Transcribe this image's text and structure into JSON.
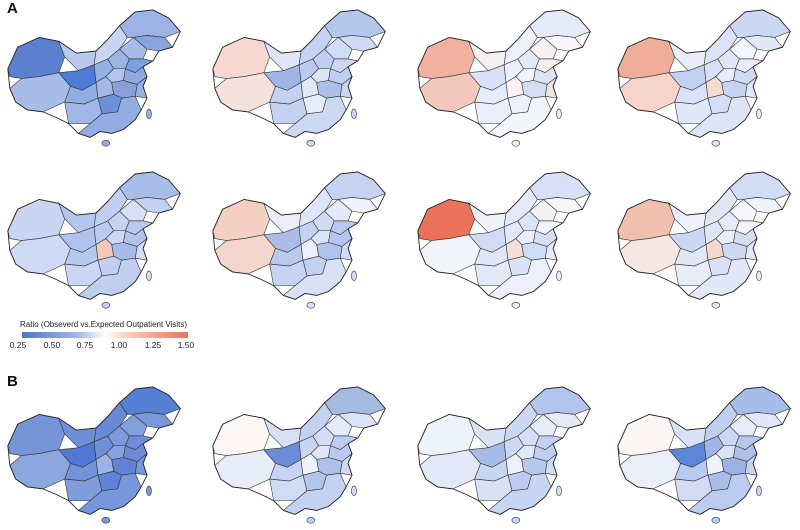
{
  "panels": [
    {
      "label": "A",
      "map_colors": [
        [
          "#5a80cf",
          "#a8bce8",
          "#b8c8ee",
          "#c8d6f3",
          "#9db2e6",
          "#8aa4e0",
          "#4e7bd6",
          "#a6bde9",
          "#95b0e4",
          "#9ab4e6",
          "#7fa0de",
          "#b3c5ee",
          "#8ea9e2",
          "#92ade3",
          "#a2b8e7",
          "#889fd9",
          "#98b1e5",
          "#6d90da",
          "#a0b7e7",
          "#93ace3"
        ],
        [
          "#f6d8d1",
          "#f4e1dc",
          "#dfe5f6",
          "#c5d2f1",
          "#b6c7ee",
          "#cfdaf4",
          "#9fb5e6",
          "#d0dbf4",
          "#b9c9ef",
          "#c1d0f2",
          "#cbd7f3",
          "#dde4f6",
          "#bfcef1",
          "#c4d2f2",
          "#e0e7f7",
          "#aabfe9",
          "#c9d5f3",
          "#e8edf9",
          "#c3d1f2",
          "#ccd8f4"
        ],
        [
          "#f0b1a0",
          "#f2c8bc",
          "#f5eeee",
          "#eef2fb",
          "#e5ebf8",
          "#f5f7fc",
          "#d8e1f6",
          "#f6f2f2",
          "#eaf0fa",
          "#e2e9f8",
          "#f8f0ee",
          "#f1f4fb",
          "#dce4f7",
          "#e6ecf9",
          "#fbf4f2",
          "#d3ddf4",
          "#efe6e4",
          "#ecf1fa",
          "#e9eef9",
          "#f3f5fc"
        ],
        [
          "#f0ad99",
          "#f5d4ca",
          "#e8edf9",
          "#dbe3f6",
          "#cbd7f3",
          "#e1e8f7",
          "#c2d0f1",
          "#f3f6fc",
          "#d7e0f6",
          "#dfe6f7",
          "#ebeffa",
          "#e6ecf8",
          "#cfdaf4",
          "#d9e2f6",
          "#f6dccf",
          "#c6d3f2",
          "#e1e8f8",
          "#d4def5",
          "#e0e7f7",
          "#dce4f7"
        ]
      ]
    },
    {
      "label": "",
      "map_colors": [
        [
          "#c9d6f3",
          "#cfdaf4",
          "#b5c6ee",
          "#c0cff1",
          "#a9bde9",
          "#c4d2f2",
          "#b0c2ec",
          "#d6dff5",
          "#bccbf0",
          "#c6d3f2",
          "#bac9ef",
          "#cdd8f3",
          "#b2c4ed",
          "#b7c8ee",
          "#f1c8b9",
          "#a7bbe8",
          "#d2dcf5",
          "#c1d0f1",
          "#cad6f3",
          "#bfcef1"
        ],
        [
          "#f4d0c4",
          "#f2d6cc",
          "#e9eef9",
          "#dfe6f7",
          "#c7d3f2",
          "#f0f3fb",
          "#aabde9",
          "#e3e9f8",
          "#c3d1f2",
          "#cfdaf4",
          "#bacaef",
          "#dbe3f6",
          "#b5c6ee",
          "#b9c9ef",
          "#ecf0fa",
          "#b1c3ec",
          "#d0dbf4",
          "#c2d0f1",
          "#c8d4f3",
          "#d8e1f6"
        ],
        [
          "#eb7258",
          "#f2f4fb",
          "#eef2fb",
          "#e4eaf8",
          "#d7e0f6",
          "#f4f6fc",
          "#d1dbf4",
          "#f7f1f0",
          "#e1e8f8",
          "#dce4f7",
          "#eff3fb",
          "#e8edf9",
          "#d5dff5",
          "#dee5f7",
          "#f3ddd5",
          "#d0dbf4",
          "#e6ecf9",
          "#dae2f6",
          "#e2e9f8",
          "#ebf0fa"
        ],
        [
          "#f1bfae",
          "#f6e7e2",
          "#ecf0fa",
          "#e0e7f7",
          "#d2dcf5",
          "#eef2fb",
          "#cbd7f3",
          "#f6f7fc",
          "#dde5f7",
          "#e4eaf8",
          "#eff3fb",
          "#e9eef9",
          "#d4def5",
          "#dfe6f7",
          "#f3d7cc",
          "#cdd8f3",
          "#e3e9f8",
          "#d9e1f6",
          "#e7ecf9",
          "#e1e8f7"
        ]
      ]
    },
    {
      "label": "B",
      "map_colors": [
        [
          "#7595d8",
          "#8ca6e0",
          "#6f90d8",
          "#6889d6",
          "#5780d4",
          "#7a99da",
          "#4f79d3",
          "#829fde",
          "#718fd7",
          "#7d9bdc",
          "#6d8ed7",
          "#86a2de",
          "#6c8dd6",
          "#7392d8",
          "#9bb2e5",
          "#6282d3",
          "#7897da",
          "#5e84d5",
          "#7f9cdc",
          "#7797da"
        ],
        [
          "#fcf6f5",
          "#e8edf9",
          "#d6dff5",
          "#c4d2f2",
          "#a4badf",
          "#dbe3f6",
          "#6a8dd8",
          "#e4eaf8",
          "#c9d5f3",
          "#d2dcf5",
          "#bdccf0",
          "#dfe6f7",
          "#b9c9ef",
          "#c6d3f2",
          "#f0f3fb",
          "#aec1eb",
          "#cfdaf4",
          "#b2c4ed",
          "#d0dbf4",
          "#c3d1f2"
        ],
        [
          "#eef2fb",
          "#e3e9f8",
          "#dae2f6",
          "#ccd8f3",
          "#b3c5ee",
          "#e4eaf8",
          "#a6bbe8",
          "#e8edf9",
          "#cdd8f4",
          "#d5def5",
          "#c3d1f2",
          "#e1e8f7",
          "#c0cff1",
          "#c8d5f3",
          "#ebf0fa",
          "#b7c8ee",
          "#d2dcf5",
          "#bccbf0",
          "#d8e1f6",
          "#c9d6f3"
        ],
        [
          "#fdf5f3",
          "#e9eef9",
          "#d9e1f6",
          "#c1d0f1",
          "#a7bce9",
          "#e0e7f7",
          "#5c86d6",
          "#e6ecf9",
          "#9fb5e6",
          "#ccd7f3",
          "#b6c7ee",
          "#dbe3f6",
          "#aec1eb",
          "#b9c9ef",
          "#eff3fb",
          "#9ab2e6",
          "#c7d4f2",
          "#a9bde9",
          "#d1dbf4",
          "#bccbf0"
        ]
      ]
    }
  ],
  "legend": {
    "title": "Ratio (Obseverd vs.Expected Outpatient Visits)",
    "ticks": [
      "0.25",
      "0.50",
      "0.75",
      "1.00",
      "1.25",
      "1.50"
    ],
    "colors": [
      "#4a78c4",
      "#a8b8e6",
      "#ffffff",
      "#f7c7b4",
      "#ea7458"
    ]
  }
}
